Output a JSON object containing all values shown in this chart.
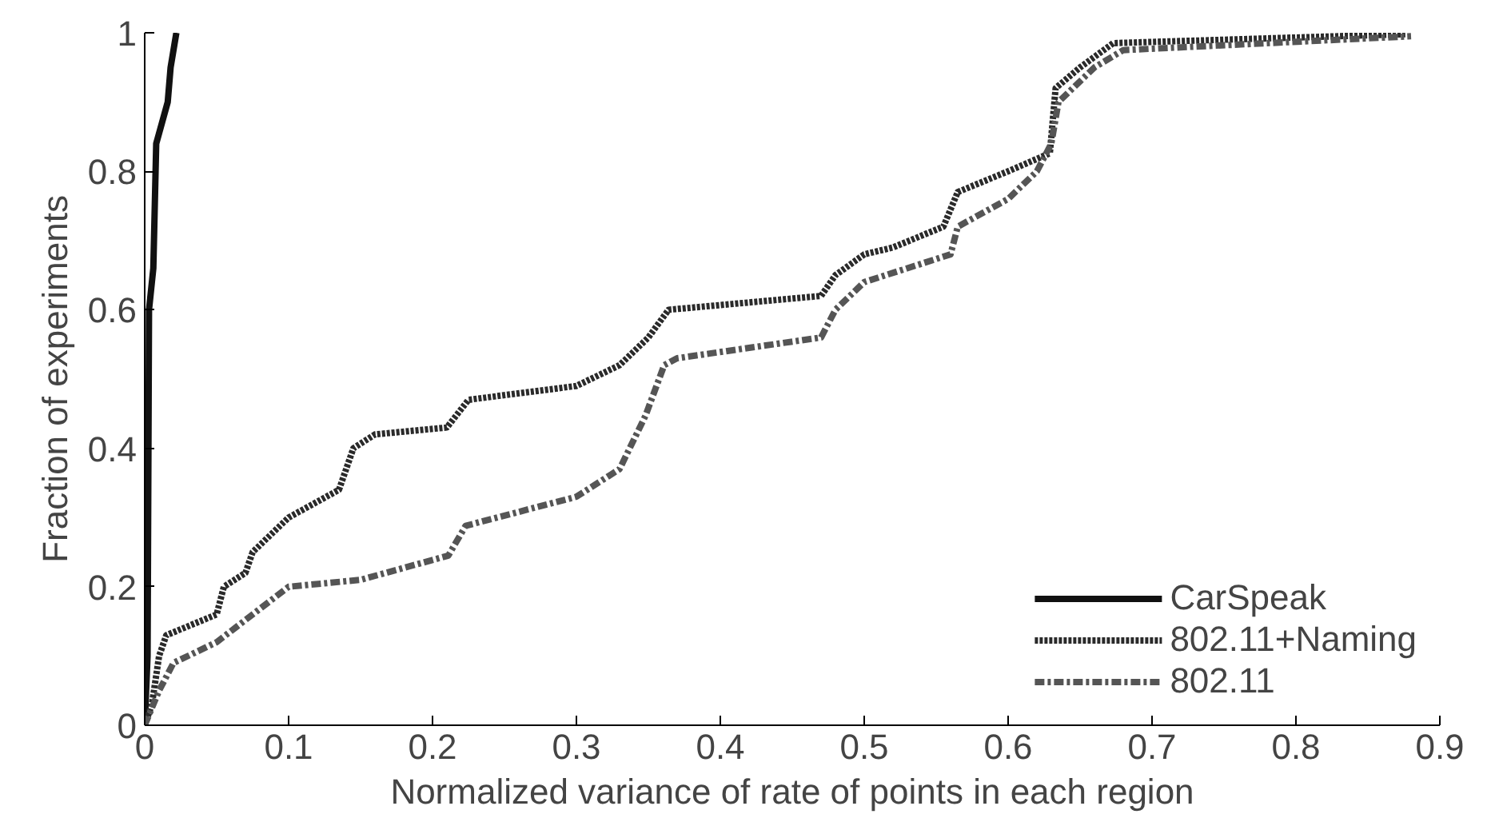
{
  "chart_data": {
    "type": "line",
    "xlabel": "Normalized variance of rate of points in each region",
    "ylabel": "Fraction of experiments",
    "xlim": [
      0,
      0.9
    ],
    "ylim": [
      0,
      1
    ],
    "xticks": [
      0,
      0.1,
      0.2,
      0.3,
      0.4,
      0.5,
      0.6,
      0.7,
      0.8,
      0.9
    ],
    "yticks": [
      0,
      0.2,
      0.4,
      0.6,
      0.8,
      1
    ],
    "grid": false,
    "legend": "bottom right",
    "marker": "none",
    "series": [
      {
        "name": "CarSpeak",
        "color": "#111111",
        "line_style": "solid",
        "x": [
          0,
          0.002,
          0.003,
          0.006,
          0.008,
          0.016,
          0.018,
          0.022
        ],
        "values": [
          0,
          0.1,
          0.6,
          0.66,
          0.84,
          0.9,
          0.95,
          1.0
        ]
      },
      {
        "name": "802.11+Naming",
        "color": "#2a2a2a",
        "line_style": "dotted",
        "x": [
          0,
          0.005,
          0.01,
          0.015,
          0.05,
          0.055,
          0.07,
          0.075,
          0.1,
          0.135,
          0.145,
          0.16,
          0.21,
          0.225,
          0.3,
          0.33,
          0.35,
          0.364,
          0.47,
          0.48,
          0.5,
          0.52,
          0.555,
          0.565,
          0.6,
          0.629,
          0.633,
          0.65,
          0.673,
          0.75,
          0.876
        ],
        "values": [
          0,
          0.03,
          0.1,
          0.13,
          0.16,
          0.2,
          0.22,
          0.25,
          0.3,
          0.34,
          0.4,
          0.42,
          0.43,
          0.47,
          0.49,
          0.52,
          0.56,
          0.6,
          0.62,
          0.65,
          0.68,
          0.69,
          0.72,
          0.77,
          0.8,
          0.826,
          0.92,
          0.95,
          0.985,
          0.99,
          0.998
        ]
      },
      {
        "name": "802.11",
        "color": "#555555",
        "line_style": "dashdot",
        "x": [
          0,
          0.01,
          0.02,
          0.05,
          0.1,
          0.15,
          0.211,
          0.223,
          0.3,
          0.33,
          0.348,
          0.361,
          0.37,
          0.47,
          0.48,
          0.5,
          0.56,
          0.565,
          0.6,
          0.62,
          0.63,
          0.635,
          0.66,
          0.68,
          0.88
        ],
        "values": [
          0,
          0.05,
          0.09,
          0.12,
          0.2,
          0.21,
          0.245,
          0.288,
          0.33,
          0.37,
          0.447,
          0.52,
          0.53,
          0.56,
          0.6,
          0.64,
          0.68,
          0.72,
          0.76,
          0.8,
          0.84,
          0.9,
          0.95,
          0.975,
          0.995
        ]
      }
    ]
  }
}
